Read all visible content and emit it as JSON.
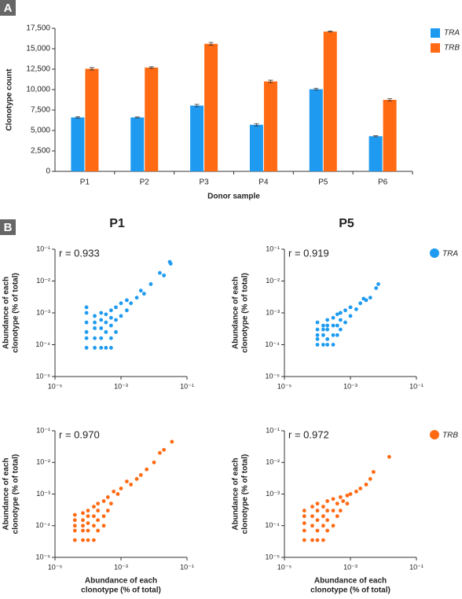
{
  "panel_labels": [
    "A",
    "B"
  ],
  "chart_data": [
    {
      "type": "bar",
      "xlabel": "Donor sample",
      "ylabel": "Clonotype count",
      "categories": [
        "P1",
        "P2",
        "P3",
        "P4",
        "P5",
        "P6"
      ],
      "series": [
        {
          "name": "TRA",
          "color": "#1e9bf0",
          "values": [
            6600,
            6600,
            8050,
            5700,
            10050,
            4300
          ],
          "errors": [
            80,
            60,
            150,
            140,
            120,
            60
          ]
        },
        {
          "name": "TRB",
          "color": "#ff6a13",
          "values": [
            12550,
            12700,
            15600,
            11000,
            17100,
            8750
          ],
          "errors": [
            150,
            100,
            170,
            150,
            60,
            130
          ]
        }
      ],
      "ylim": [
        0,
        17500
      ],
      "yticks": [
        0,
        {
          "value": 2500,
          "label": "2,500"
        },
        {
          "value": 5000,
          "label": "5,000"
        },
        {
          "value": 7500,
          "label": "7,500"
        },
        {
          "value": 10000,
          "label": "10,000"
        },
        {
          "value": 12500,
          "label": "12,500"
        },
        {
          "value": 15000,
          "label": "15,000"
        },
        {
          "value": 17500,
          "label": "17,500"
        }
      ],
      "legend": "right"
    },
    {
      "type": "scatter",
      "title": "P1",
      "annotation": "r = 0.933",
      "xscale": "log",
      "yscale": "log",
      "ylabel": [
        "Abundance of each",
        "clonotype (% of total)"
      ],
      "xlim": [
        1e-05,
        0.1
      ],
      "ylim": [
        1e-05,
        0.1
      ],
      "xticks": [
        {
          "value": 1e-05,
          "label": "10⁻⁵"
        },
        {
          "value": 0.001,
          "label": "10⁻³"
        },
        {
          "value": 0.1,
          "label": "10⁻¹"
        }
      ],
      "yticks": [
        {
          "value": 1e-05,
          "label": "10⁻⁵"
        },
        {
          "value": 0.0001,
          "label": "10⁻⁴"
        },
        {
          "value": 0.001,
          "label": "10⁻³"
        },
        {
          "value": 0.01,
          "label": "10⁻²"
        },
        {
          "value": 0.1,
          "label": "10⁻¹"
        }
      ],
      "series": [
        {
          "color": "#1e9bf0",
          "x": [
            9e-05,
            9e-05,
            9e-05,
            9e-05,
            9e-05,
            9e-05,
            0.00016,
            0.00016,
            0.00016,
            0.00016,
            0.00016,
            0.00025,
            0.00025,
            0.00025,
            0.00025,
            0.00025,
            0.00035,
            0.00035,
            0.00035,
            0.00035,
            0.0005,
            0.0005,
            0.0005,
            0.0005,
            0.0005,
            0.0007,
            0.0007,
            0.0007,
            0.001,
            0.001,
            0.0015,
            0.0015,
            0.002,
            0.003,
            0.004,
            0.005,
            0.008,
            0.015,
            0.02,
            0.03,
            0.032
          ],
          "values": [
            8e-05,
            0.00016,
            0.00025,
            0.0005,
            0.001,
            0.0015,
            8e-05,
            0.00016,
            0.00033,
            0.0005,
            0.0008,
            8e-05,
            0.00016,
            0.00033,
            0.0006,
            0.001,
            8e-05,
            0.00025,
            0.0005,
            0.0009,
            8e-05,
            0.00016,
            0.0004,
            0.0007,
            0.0012,
            0.00025,
            0.0006,
            0.0015,
            0.0008,
            0.002,
            0.0012,
            0.0025,
            0.002,
            0.003,
            0.005,
            0.004,
            0.008,
            0.018,
            0.015,
            0.04,
            0.035
          ]
        }
      ]
    },
    {
      "type": "scatter",
      "title": "P5",
      "annotation": "r = 0.919",
      "xscale": "log",
      "yscale": "log",
      "ylabel": [
        "Abundance of each",
        "clonotype (% of total)"
      ],
      "xlim": [
        1e-05,
        0.1
      ],
      "ylim": [
        1e-05,
        0.1
      ],
      "xticks": [
        {
          "value": 1e-05,
          "label": "10⁻⁵"
        },
        {
          "value": 0.001,
          "label": "10⁻³"
        },
        {
          "value": 0.1,
          "label": "10⁻¹"
        }
      ],
      "yticks": [
        {
          "value": 1e-05,
          "label": "10⁻⁵"
        },
        {
          "value": 0.0001,
          "label": "10⁻⁴"
        },
        {
          "value": 0.001,
          "label": "10⁻³"
        },
        {
          "value": 0.01,
          "label": "10⁻²"
        },
        {
          "value": 0.1,
          "label": "10⁻¹"
        }
      ],
      "legend": "right",
      "series": [
        {
          "name": "TRA",
          "color": "#1e9bf0",
          "x": [
            0.0001,
            0.0001,
            0.0001,
            0.0001,
            0.0001,
            0.00015,
            0.00015,
            0.00015,
            0.00015,
            0.0002,
            0.0002,
            0.0002,
            0.0002,
            0.0002,
            0.0003,
            0.0003,
            0.0003,
            0.0003,
            0.0004,
            0.0004,
            0.0004,
            0.0005,
            0.0005,
            0.0005,
            0.0007,
            0.0007,
            0.001,
            0.001,
            0.0015,
            0.002,
            0.0025,
            0.003,
            0.004,
            0.006,
            0.007
          ],
          "values": [
            0.0001,
            0.00015,
            0.0002,
            0.0003,
            0.0005,
            0.0001,
            0.0002,
            0.0003,
            0.0004,
            0.0001,
            0.00015,
            0.0003,
            0.0004,
            0.0006,
            0.0001,
            0.0002,
            0.0004,
            0.0007,
            0.0002,
            0.0004,
            0.0009,
            0.0003,
            0.0006,
            0.001,
            0.0005,
            0.0012,
            0.0008,
            0.0015,
            0.0013,
            0.002,
            0.0028,
            0.0025,
            0.003,
            0.006,
            0.008
          ]
        }
      ]
    },
    {
      "type": "scatter",
      "annotation": "r = 0.970",
      "xscale": "log",
      "yscale": "log",
      "xlabel": [
        "Abundance of each",
        "clonotype (% of total)"
      ],
      "ylabel": [
        "Abundance of each",
        "clonotype (% of total)"
      ],
      "xlim": [
        1e-05,
        0.1
      ],
      "ylim": [
        1e-05,
        0.1
      ],
      "xticks": [
        {
          "value": 1e-05,
          "label": "10⁻⁵"
        },
        {
          "value": 0.001,
          "label": "10⁻³"
        },
        {
          "value": 0.1,
          "label": "10⁻¹"
        }
      ],
      "yticks": [
        {
          "value": 1e-05,
          "label": "10⁻⁵"
        },
        {
          "value": 0.0001,
          "label": "10⁻⁴"
        },
        {
          "value": 0.001,
          "label": "10⁻³"
        },
        {
          "value": 0.01,
          "label": "10⁻²"
        },
        {
          "value": 0.1,
          "label": "10⁻¹"
        }
      ],
      "series": [
        {
          "color": "#ff6a13",
          "x": [
            4e-05,
            4e-05,
            4e-05,
            4e-05,
            4e-05,
            7e-05,
            7e-05,
            7e-05,
            7e-05,
            7e-05,
            0.0001,
            0.0001,
            0.0001,
            0.0001,
            0.0001,
            0.00015,
            0.00015,
            0.00015,
            0.00015,
            0.0002,
            0.0002,
            0.0002,
            0.0002,
            0.0003,
            0.0003,
            0.0003,
            0.0004,
            0.0004,
            0.0005,
            0.0006,
            0.0008,
            0.001,
            0.0015,
            0.002,
            0.003,
            0.004,
            0.006,
            0.01,
            0.015,
            0.02,
            0.035
          ],
          "values": [
            3.5e-05,
            7e-05,
            0.0001,
            0.00015,
            0.00022,
            3.5e-05,
            7e-05,
            0.0001,
            0.00015,
            0.00025,
            3.5e-05,
            7e-05,
            0.00012,
            0.0002,
            0.0003,
            3.5e-05,
            0.0001,
            0.0002,
            0.0004,
            7e-05,
            0.00015,
            0.0003,
            0.0005,
            0.0001,
            0.0002,
            0.0006,
            0.0003,
            0.0008,
            0.0005,
            0.0012,
            0.001,
            0.0015,
            0.0025,
            0.002,
            0.003,
            0.004,
            0.006,
            0.01,
            0.02,
            0.025,
            0.045
          ]
        }
      ]
    },
    {
      "type": "scatter",
      "annotation": "r = 0.972",
      "xscale": "log",
      "yscale": "log",
      "xlabel": [
        "Abundance of each",
        "clonotype (% of total)"
      ],
      "ylabel": [
        "Abundance of each",
        "clonotype (% of total)"
      ],
      "xlim": [
        1e-05,
        0.1
      ],
      "ylim": [
        1e-05,
        0.1
      ],
      "xticks": [
        {
          "value": 1e-05,
          "label": "10⁻⁵"
        },
        {
          "value": 0.001,
          "label": "10⁻³"
        },
        {
          "value": 0.1,
          "label": "10⁻¹"
        }
      ],
      "yticks": [
        {
          "value": 1e-05,
          "label": "10⁻⁵"
        },
        {
          "value": 0.0001,
          "label": "10⁻⁴"
        },
        {
          "value": 0.001,
          "label": "10⁻³"
        },
        {
          "value": 0.01,
          "label": "10⁻²"
        },
        {
          "value": 0.1,
          "label": "10⁻¹"
        }
      ],
      "legend": "right",
      "series": [
        {
          "name": "TRB",
          "color": "#ff6a13",
          "x": [
            4e-05,
            4e-05,
            4e-05,
            4e-05,
            4e-05,
            7e-05,
            7e-05,
            7e-05,
            7e-05,
            0.0001,
            0.0001,
            0.0001,
            0.0001,
            0.0001,
            0.00015,
            0.00015,
            0.00015,
            0.00015,
            0.0002,
            0.0002,
            0.0002,
            0.0002,
            0.0003,
            0.0003,
            0.0003,
            0.0004,
            0.0004,
            0.0005,
            0.0005,
            0.0006,
            0.0008,
            0.0008,
            0.001,
            0.0015,
            0.002,
            0.003,
            0.004,
            0.005,
            0.015
          ],
          "values": [
            3.5e-05,
            7e-05,
            0.00012,
            0.0002,
            0.0003,
            3.5e-05,
            0.0001,
            0.0002,
            0.0004,
            3.5e-05,
            7e-05,
            0.00015,
            0.0003,
            0.0005,
            3.5e-05,
            0.0001,
            0.0002,
            0.0004,
            7e-05,
            0.00015,
            0.0003,
            0.0006,
            0.0001,
            0.0003,
            0.0007,
            0.0002,
            0.0005,
            0.0003,
            0.0008,
            0.0006,
            0.0005,
            0.0009,
            0.001,
            0.0012,
            0.0015,
            0.002,
            0.003,
            0.005,
            0.015
          ]
        }
      ]
    }
  ]
}
